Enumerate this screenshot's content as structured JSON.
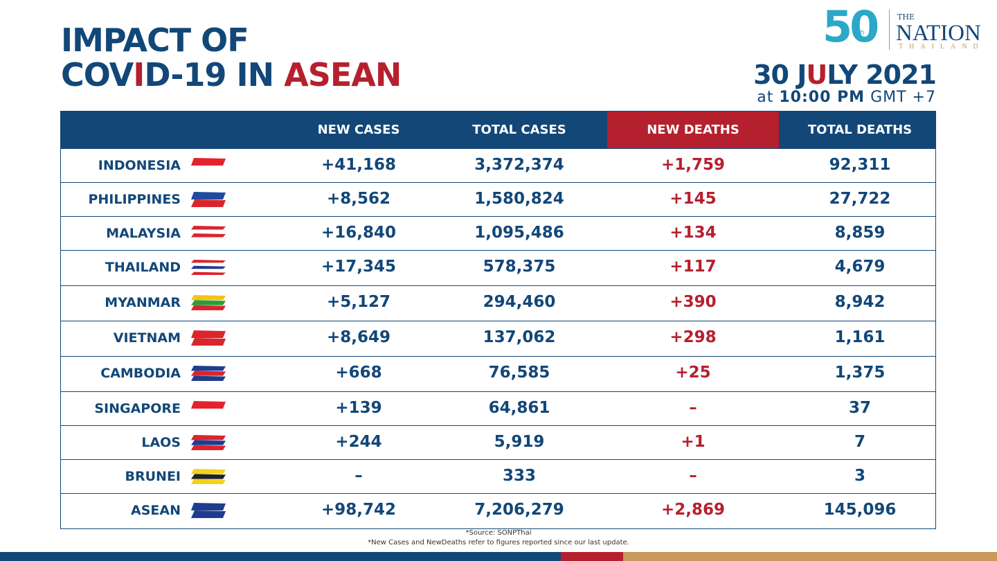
{
  "header": {
    "title_line1": "IMPACT OF",
    "title_line2": [
      {
        "text": "COV",
        "accent": false
      },
      {
        "text": "I",
        "accent": true
      },
      {
        "text": "D-19 IN ",
        "accent": false
      },
      {
        "text": "ASEAN",
        "accent": true
      }
    ],
    "date": [
      {
        "text": "30 J",
        "accent": false
      },
      {
        "text": "U",
        "accent": true
      },
      {
        "text": "LY 2021",
        "accent": false
      }
    ],
    "time": {
      "prefix": "at",
      "time": "10:00 PM",
      "zone": "GMT +7"
    }
  },
  "logo": {
    "number": "50",
    "suffix": "th",
    "the": "THE",
    "nation": "NATION",
    "thailand": "THAILAND"
  },
  "table": {
    "columns": [
      "NEW CASES",
      "TOTAL CASES",
      "NEW DEATHS",
      "TOTAL DEATHS"
    ],
    "rows": [
      {
        "country": "INDONESIA",
        "cells": [
          "+41,168",
          "3,372,374",
          "+1,759",
          "92,311"
        ]
      },
      {
        "country": "PHILIPPINES",
        "cells": [
          "+8,562",
          "1,580,824",
          "+145",
          "27,722"
        ]
      },
      {
        "country": "MALAYSIA",
        "cells": [
          "+16,840",
          "1,095,486",
          "+134",
          "8,859"
        ]
      },
      {
        "country": "THAILAND",
        "cells": [
          "+17,345",
          "578,375",
          "+117",
          "4,679"
        ]
      },
      {
        "country": "MYANMAR",
        "cells": [
          "+5,127",
          "294,460",
          "+390",
          "8,942"
        ]
      },
      {
        "country": "VIETNAM",
        "cells": [
          "+8,649",
          "137,062",
          "+298",
          "1,161"
        ]
      },
      {
        "country": "CAMBODIA",
        "cells": [
          "+668",
          "76,585",
          "+25",
          "1,375"
        ]
      },
      {
        "country": "SINGAPORE",
        "cells": [
          "+139",
          "64,861",
          "–",
          "37"
        ]
      },
      {
        "country": "LAOS",
        "cells": [
          "+244",
          "5,919",
          "+1",
          "7"
        ]
      },
      {
        "country": "BRUNEI",
        "cells": [
          "–",
          "333",
          "–",
          "3"
        ]
      },
      {
        "country": "ASEAN",
        "cells": [
          "+98,742",
          "7,206,279",
          "+2,869",
          "145,096"
        ]
      }
    ]
  },
  "footnotes": [
    "*Source: SONPThai",
    "*New Cases and NewDeaths refer to figures reported since our last update."
  ]
}
